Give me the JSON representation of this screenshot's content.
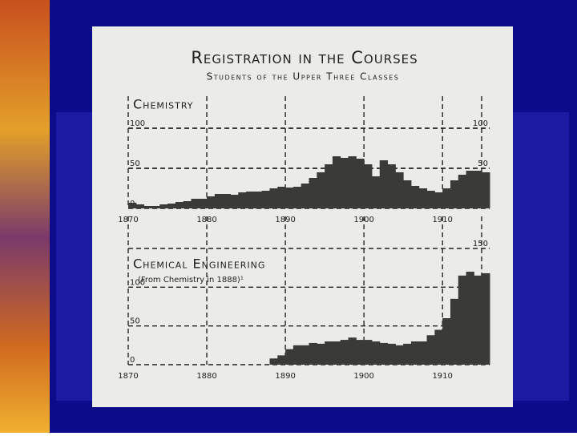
{
  "header": {
    "title": "Registration in the Courses",
    "subtitle": "Students of the Upper Three Classes"
  },
  "chart_data": [
    {
      "type": "step",
      "title": "Chemistry",
      "color": "#3a3a38",
      "x": [
        1870,
        1871,
        1872,
        1873,
        1874,
        1875,
        1876,
        1877,
        1878,
        1879,
        1880,
        1881,
        1882,
        1883,
        1884,
        1885,
        1886,
        1887,
        1888,
        1889,
        1890,
        1891,
        1892,
        1893,
        1894,
        1895,
        1896,
        1897,
        1898,
        1899,
        1900,
        1901,
        1902,
        1903,
        1904,
        1905,
        1906,
        1907,
        1908,
        1909,
        1910,
        1911,
        1912,
        1913,
        1914,
        1915
      ],
      "values": [
        7,
        5,
        3,
        3,
        5,
        6,
        8,
        9,
        12,
        12,
        15,
        18,
        18,
        17,
        20,
        21,
        21,
        22,
        25,
        27,
        26,
        27,
        31,
        38,
        45,
        55,
        65,
        63,
        65,
        62,
        55,
        40,
        60,
        55,
        45,
        35,
        28,
        25,
        22,
        20,
        25,
        35,
        42,
        47,
        47,
        45
      ],
      "xlim": [
        1870,
        1916
      ],
      "xticks": [
        1870,
        1880,
        1890,
        1900,
        1910
      ],
      "ylim": [
        0,
        100
      ],
      "yticks": [
        0,
        50,
        100
      ],
      "y2lim": [
        0,
        100
      ],
      "y2ticks": [
        50,
        100
      ],
      "grid": true
    },
    {
      "type": "step",
      "title": "Chemical Engineering",
      "annotation": "(From Chemistry in 1888)¹",
      "color": "#3a3a38",
      "x": [
        1888,
        1889,
        1890,
        1891,
        1892,
        1893,
        1894,
        1895,
        1896,
        1897,
        1898,
        1899,
        1900,
        1901,
        1902,
        1903,
        1904,
        1905,
        1906,
        1907,
        1908,
        1909,
        1910,
        1911,
        1912,
        1913,
        1914,
        1915
      ],
      "values": [
        8,
        12,
        20,
        25,
        25,
        28,
        27,
        30,
        30,
        32,
        35,
        32,
        32,
        30,
        28,
        27,
        25,
        27,
        30,
        30,
        38,
        45,
        60,
        85,
        115,
        120,
        115,
        118
      ],
      "xlim": [
        1870,
        1916
      ],
      "xticks": [
        1870,
        1880,
        1890,
        1900,
        1910
      ],
      "ylim": [
        0,
        150
      ],
      "yticks": [
        0,
        50,
        100
      ],
      "y2lim": [
        0,
        150
      ],
      "y2ticks": [
        150
      ],
      "grid": true
    }
  ]
}
